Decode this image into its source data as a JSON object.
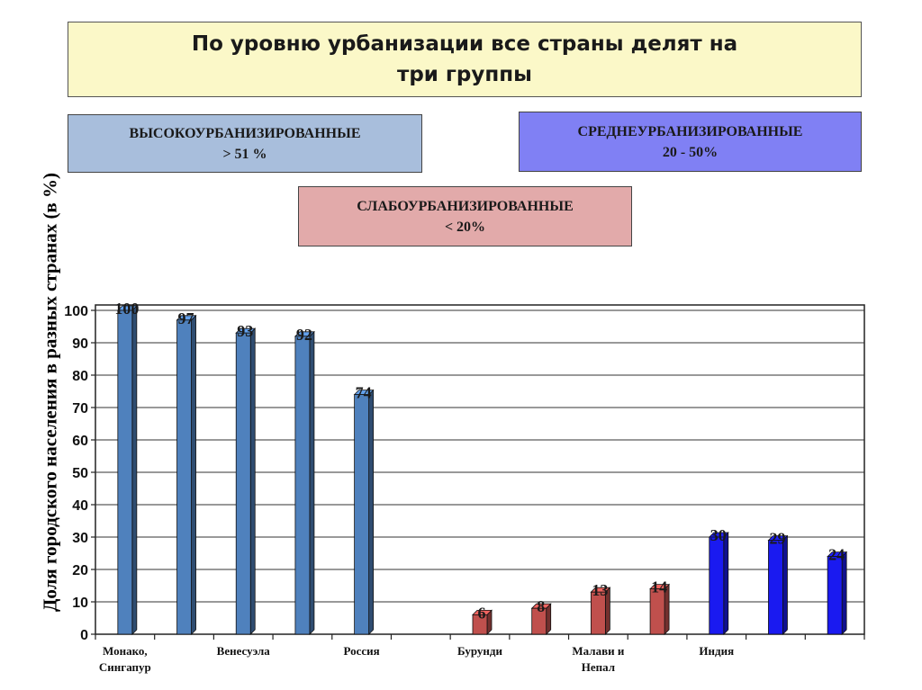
{
  "page": {
    "title": "По уровню урбанизации все страны делят на три группы"
  },
  "groups": {
    "high": {
      "name": "ВЫСОКОУРБАНИЗИРОВАННЫЕ",
      "range": "> 51 %",
      "color": "#a8bedc"
    },
    "mid": {
      "name": "СРЕДНЕУРБАНИЗИРОВАННЫЕ",
      "range": "20 - 50%",
      "color": "#8080f4"
    },
    "low": {
      "name": "СЛАБОУРБАНИЗИРОВАННЫЕ",
      "range": "< 20%",
      "color": "#e2aaaa"
    }
  },
  "chart_data": {
    "type": "bar",
    "ylabel": "Доля городского населения в разных странах (в %)",
    "xlabel": "",
    "ylim": [
      0,
      100
    ],
    "yticks": [
      0,
      10,
      20,
      30,
      40,
      50,
      60,
      70,
      80,
      90,
      100
    ],
    "grid": true,
    "legend": "none",
    "categories": [
      "Монако, Сингапур",
      "",
      "Венесуэла",
      "",
      "Россия",
      "",
      "Бурунди",
      "",
      "Малави и Непал",
      "",
      "Индия",
      "",
      ""
    ],
    "category_labels": [
      [
        "Монако,",
        "Сингапур"
      ],
      [],
      [
        "Венесуэла"
      ],
      [],
      [
        "Россия"
      ],
      [],
      [
        "Бурунди"
      ],
      [],
      [
        "Малави и",
        "Непал"
      ],
      [],
      [
        "Индия"
      ],
      [],
      []
    ],
    "bars": [
      {
        "category_index": 0,
        "value": 100,
        "group": "high"
      },
      {
        "category_index": 1,
        "value": 97,
        "group": "high"
      },
      {
        "category_index": 2,
        "value": 93,
        "group": "high"
      },
      {
        "category_index": 3,
        "value": 92,
        "group": "high"
      },
      {
        "category_index": 4,
        "value": 74,
        "group": "high"
      },
      {
        "category_index": 6,
        "value": 6,
        "group": "low"
      },
      {
        "category_index": 7,
        "value": 8,
        "group": "low"
      },
      {
        "category_index": 8,
        "value": 13,
        "group": "low"
      },
      {
        "category_index": 9,
        "value": 14,
        "group": "low"
      },
      {
        "category_index": 10,
        "value": 30,
        "group": "mid"
      },
      {
        "category_index": 11,
        "value": 29,
        "group": "mid"
      },
      {
        "category_index": 12,
        "value": 24,
        "group": "mid"
      }
    ],
    "bar_colors": {
      "high": "#4f81bd",
      "low": "#c0504d",
      "mid": "#1a1af0"
    }
  }
}
